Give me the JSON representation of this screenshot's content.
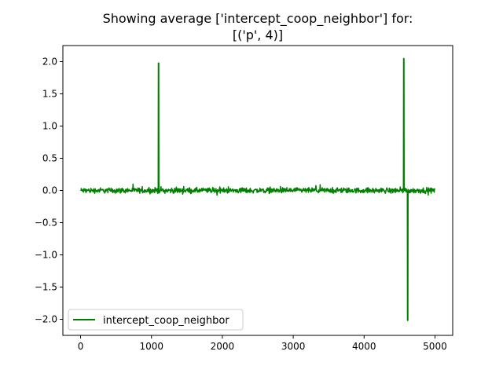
{
  "chart_data": {
    "type": "line",
    "title_lines": [
      "Showing average ['intercept_coop_neighbor'] for:",
      "[('p', 4)]"
    ],
    "xlabel": "",
    "ylabel": "",
    "xlim": [
      -250,
      5250
    ],
    "ylim": [
      -2.25,
      2.25
    ],
    "x_ticks": [
      0,
      1000,
      2000,
      3000,
      4000,
      5000
    ],
    "x_tick_labels": [
      "0",
      "1000",
      "2000",
      "3000",
      "4000",
      "5000"
    ],
    "y_ticks": [
      2.0,
      1.5,
      1.0,
      0.5,
      0.0,
      -0.5,
      -1.0,
      -1.5,
      -2.0
    ],
    "y_tick_labels": [
      "2.0",
      "1.5",
      "1.0",
      "0.5",
      "0.0",
      "−0.5",
      "−1.0",
      "−1.5",
      "−2.0"
    ],
    "grid": false,
    "legend": {
      "location": "lower-left",
      "entries": [
        "intercept_coop_neighbor"
      ]
    },
    "series": [
      {
        "name": "intercept_coop_neighbor",
        "color": "#008000",
        "x_range": [
          0,
          4999
        ],
        "baseline": 0.0,
        "noise_amplitude": 0.06,
        "spikes": [
          {
            "x": 1100,
            "y": 1.98
          },
          {
            "x": 4560,
            "y": 2.05
          },
          {
            "x": 4615,
            "y": -2.02
          }
        ]
      }
    ]
  }
}
